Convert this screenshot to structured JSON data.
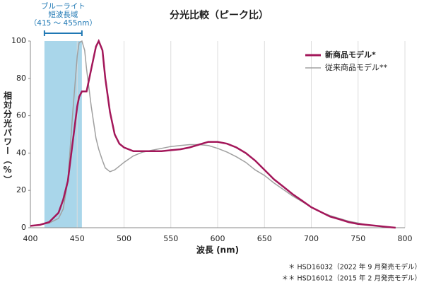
{
  "chart_data": {
    "type": "line",
    "title": "分光比較（ピーク比）",
    "x_label": "波長 (nm)",
    "y_label": "相対分光パワー（%）",
    "x": [
      400,
      410,
      420,
      430,
      435,
      440,
      445,
      450,
      452,
      455,
      458,
      460,
      465,
      470,
      473,
      477,
      480,
      485,
      490,
      495,
      500,
      510,
      520,
      530,
      540,
      550,
      560,
      570,
      580,
      590,
      600,
      610,
      620,
      630,
      640,
      650,
      660,
      670,
      680,
      690,
      700,
      710,
      720,
      730,
      740,
      750,
      760,
      770,
      780,
      790
    ],
    "series": [
      {
        "name": "新商品モデル*",
        "color": "#a3175a",
        "values": [
          1,
          1.5,
          3,
          8,
          15,
          25,
          45,
          65,
          70,
          73,
          73,
          73,
          85,
          97,
          100,
          95,
          80,
          62,
          50,
          45,
          43,
          41,
          41,
          41,
          41,
          41.5,
          42,
          43,
          44.5,
          46,
          46,
          45,
          43,
          40,
          36,
          31,
          26,
          22,
          18,
          14.5,
          11,
          8.5,
          6,
          4.5,
          3,
          2,
          1.5,
          1,
          0.5,
          0
        ]
      },
      {
        "name": "従来商品モデル**",
        "color": "#a0a0a0",
        "values": [
          1,
          1.5,
          2.5,
          5,
          10,
          25,
          60,
          92,
          99,
          100,
          95,
          85,
          65,
          48,
          42,
          36,
          32,
          30,
          31,
          33,
          35,
          38.5,
          40.5,
          41.5,
          42.5,
          43.5,
          44,
          44.5,
          44.5,
          44,
          42.5,
          40.5,
          38,
          35,
          31,
          28,
          24,
          20.5,
          17,
          14,
          11,
          8.5,
          6.5,
          5,
          3.5,
          2.5,
          1.5,
          1,
          0.5,
          0
        ]
      }
    ],
    "xlim": [
      400,
      800
    ],
    "ylim": [
      0,
      100
    ],
    "xticks": [
      400,
      450,
      500,
      550,
      600,
      650,
      700,
      750,
      800
    ],
    "yticks": [
      0,
      20,
      40,
      60,
      80,
      100
    ],
    "grid": true,
    "legend_position": "upper right",
    "highlight_range": [
      415,
      455
    ],
    "highlight_color": "#a9d6ea",
    "highlight_label": [
      "ブルーライト",
      "短波長域",
      "（415 ～ 455nm）"
    ],
    "footnotes": [
      "＊ HSD16032（2022 年 9 月発売モデル）",
      "＊＊ HSD16012（2015 年 2 月発売モデル）"
    ]
  }
}
